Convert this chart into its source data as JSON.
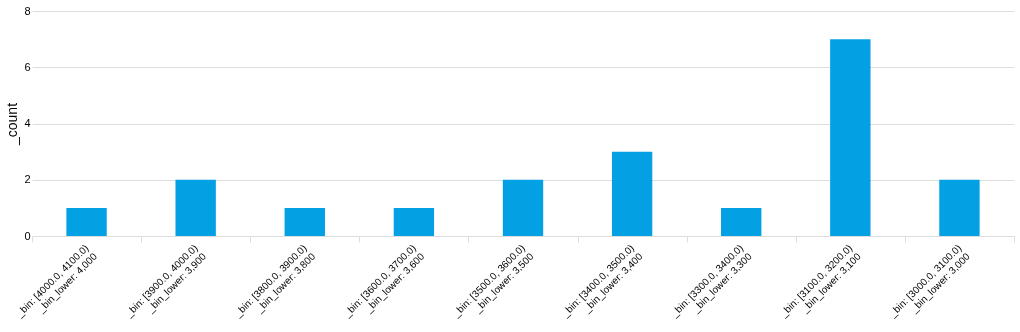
{
  "chart_data": {
    "type": "bar",
    "ylabel": "_count",
    "categories": [
      "_bin: [4000.0, 4100.0)\n_bin_lower: 4,000",
      "_bin: [3900.0, 4000.0)\n_bin_lower: 3,900",
      "_bin: [3800.0, 3900.0)\n_bin_lower: 3,800",
      "_bin: [3600.0, 3700.0)\n_bin_lower: 3,600",
      "_bin: [3500.0, 3600.0)\n_bin_lower: 3,500",
      "_bin: [3400.0, 3500.0)\n_bin_lower: 3,400",
      "_bin: [3300.0, 3400.0)\n_bin_lower: 3,300",
      "_bin: [3100.0, 3200.0)\n_bin_lower: 3,100",
      "_bin: [3000.0, 3100.0)\n_bin_lower: 3,000"
    ],
    "values": [
      1,
      2,
      1,
      1,
      2,
      3,
      1,
      7,
      2
    ],
    "color": "#03a1e4",
    "ylim": [
      0,
      8
    ],
    "yticks": [
      0,
      2,
      4,
      6,
      8
    ],
    "grid": "y"
  }
}
